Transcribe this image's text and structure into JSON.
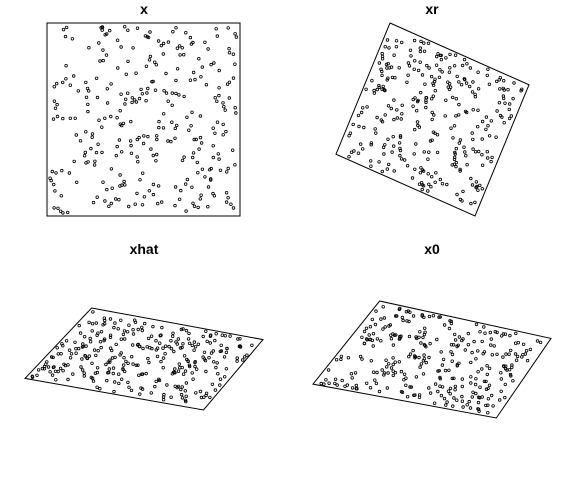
{
  "chart_data": [
    {
      "type": "scatter",
      "title": "x",
      "panel": "top-left",
      "axes": false,
      "grid": false,
      "legend": "none",
      "point_count": 300,
      "seed": 11,
      "window_vertices": [
        [
          0,
          0
        ],
        [
          1,
          0
        ],
        [
          1,
          1
        ],
        [
          0,
          1
        ]
      ],
      "color": "#000000"
    },
    {
      "type": "scatter",
      "title": "xr",
      "panel": "top-right",
      "axes": false,
      "grid": false,
      "legend": "none",
      "point_count": 300,
      "seed": 23,
      "window_vertices": [
        [
          0.28,
          1.0
        ],
        [
          1.0,
          0.68
        ],
        [
          0.72,
          0.0
        ],
        [
          0.0,
          0.32
        ]
      ],
      "color": "#000000"
    },
    {
      "type": "scatter",
      "title": "xhat",
      "panel": "bottom-left",
      "axes": false,
      "grid": false,
      "legend": "none",
      "point_count": 300,
      "seed": 37,
      "window_vertices": [
        [
          0.28,
          1.0
        ],
        [
          1.0,
          0.69
        ],
        [
          0.75,
          0.0
        ],
        [
          0.0,
          0.31
        ]
      ],
      "color": "#000000"
    },
    {
      "type": "scatter",
      "title": "x0",
      "panel": "bottom-right",
      "axes": false,
      "grid": false,
      "legend": "none",
      "point_count": 300,
      "seed": 53,
      "window_vertices": [
        [
          0.28,
          1.0
        ],
        [
          1.0,
          0.68
        ],
        [
          0.77,
          0.0
        ],
        [
          0.0,
          0.29
        ]
      ],
      "color": "#000000"
    }
  ]
}
